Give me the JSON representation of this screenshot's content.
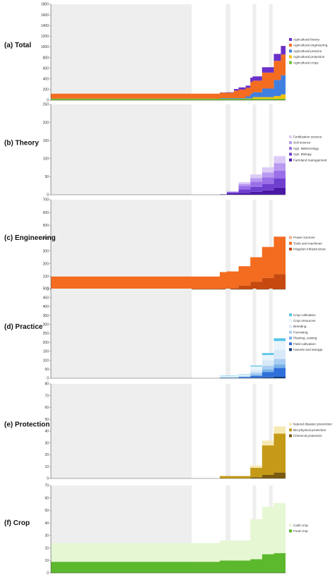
{
  "chart_data": [
    {
      "type": "area",
      "title": "(a) Total",
      "ylim": [
        0,
        1800
      ],
      "yticks": [
        0,
        200,
        400,
        600,
        800,
        1000,
        1200,
        1400,
        1600,
        1800
      ],
      "series": [
        {
          "name": "Agricultural crops",
          "color": "#6fbf2f",
          "x": [
            0,
            0.59,
            0.9,
            1
          ],
          "values": [
            28,
            28,
            28,
            28
          ]
        },
        {
          "name": "Agricultural protection",
          "color": "#f2c200",
          "x": [
            0,
            0.59,
            0.8,
            0.85,
            0.9,
            0.95,
            1
          ],
          "values": [
            0,
            2,
            5,
            30,
            50,
            80,
            110
          ]
        },
        {
          "name": "Agricultural practice",
          "color": "#3f7fe0",
          "x": [
            0,
            0.59,
            0.8,
            0.83,
            0.86,
            0.9,
            0.95,
            0.98,
            1
          ],
          "values": [
            0,
            10,
            40,
            90,
            160,
            300,
            360,
            430,
            450
          ]
        },
        {
          "name": "Agricultural engineering",
          "color": "#f36c1f",
          "x": [
            0,
            0.59,
            0.72,
            0.75,
            0.78,
            0.83,
            0.86,
            0.9,
            0.95,
            0.98,
            1
          ],
          "values": [
            95,
            100,
            100,
            140,
            160,
            220,
            300,
            360,
            390,
            480,
            590
          ]
        },
        {
          "name": "Agricultural theory",
          "color": "#6a2fc9",
          "x": [
            0,
            0.59,
            0.72,
            0.75,
            0.78,
            0.83,
            0.86,
            0.9,
            0.95,
            0.98,
            1
          ],
          "values": [
            0,
            5,
            10,
            30,
            40,
            80,
            100,
            130,
            160,
            180,
            200
          ]
        }
      ],
      "legend": [
        "Agricultural theory",
        "Agricultural engineering",
        "Agricultural practice",
        "Agricultural protection",
        "Agricultural crops"
      ]
    },
    {
      "type": "area",
      "title": "(b) Theory",
      "ylim": [
        0,
        250
      ],
      "yticks": [
        0,
        50,
        100,
        150,
        200,
        250
      ],
      "series": [
        {
          "name": "Farmland management",
          "color": "#4a1aa6",
          "x": [
            0,
            0.58,
            0.72,
            0.75,
            0.8,
            0.85,
            0.9,
            0.95,
            1
          ],
          "values": [
            0,
            0,
            3,
            5,
            8,
            12,
            20,
            30,
            38
          ]
        },
        {
          "name": "Agri. Biology",
          "color": "#6f3fd0",
          "x": [
            0,
            0.58,
            0.72,
            0.75,
            0.8,
            0.85,
            0.9,
            0.95,
            1
          ],
          "values": [
            0,
            0,
            3,
            10,
            14,
            18,
            25,
            30,
            40
          ]
        },
        {
          "name": "Agri. Meteorology",
          "color": "#9a6fe8",
          "x": [
            0,
            0.58,
            0.72,
            0.75,
            0.8,
            0.85,
            0.9,
            0.95,
            1
          ],
          "values": [
            0,
            1,
            2,
            10,
            14,
            18,
            22,
            30,
            35
          ]
        },
        {
          "name": "Soil science",
          "color": "#b99af0",
          "x": [
            0,
            0.58,
            0.72,
            0.75,
            0.8,
            0.85,
            0.9,
            0.95,
            1
          ],
          "values": [
            0,
            1,
            1,
            5,
            10,
            14,
            20,
            30,
            40
          ]
        },
        {
          "name": "Fertilization science",
          "color": "#dccbf7",
          "x": [
            0,
            0.58,
            0.72,
            0.75,
            0.8,
            0.85,
            0.9,
            0.95,
            1
          ],
          "values": [
            0,
            0,
            1,
            5,
            10,
            14,
            20,
            30,
            45
          ]
        }
      ],
      "legend": [
        "Fertilization science",
        "Soil science",
        "Agri. Meteorology",
        "Agri. Biology",
        "Farmland management"
      ]
    },
    {
      "type": "area",
      "title": "(c) Engineering",
      "ylim": [
        0,
        700
      ],
      "yticks": [
        0,
        100,
        200,
        300,
        400,
        500,
        600,
        700
      ],
      "series": [
        {
          "name": "Irrigation infrastructure",
          "color": "#c64a10",
          "x": [
            0,
            0.59,
            0.72,
            0.75,
            0.8,
            0.85,
            0.9,
            0.95,
            1
          ],
          "values": [
            0,
            5,
            10,
            30,
            60,
            90,
            120,
            180,
            230
          ]
        },
        {
          "name": "Tools and machines",
          "color": "#f36c1f",
          "x": [
            0,
            0.59,
            0.72,
            0.75,
            0.8,
            0.85,
            0.9,
            0.95,
            1
          ],
          "values": [
            100,
            130,
            130,
            150,
            190,
            240,
            290,
            320,
            350
          ]
        },
        {
          "name": "Power sources",
          "color": "#f7b08a",
          "x": [
            0,
            0.59,
            0.72,
            0.75,
            0.8,
            0.85,
            0.9,
            0.95,
            1
          ],
          "values": [
            0,
            0,
            0,
            1,
            2,
            3,
            4,
            5,
            6
          ]
        }
      ],
      "legend": [
        "Power sources",
        "Tools and machines",
        "Irrigation infrastructure"
      ]
    },
    {
      "type": "area",
      "title": "(d) Practice",
      "ylim": [
        0,
        500
      ],
      "yticks": [
        0,
        50,
        100,
        150,
        200,
        250,
        300,
        350,
        400,
        450,
        500
      ],
      "series": [
        {
          "name": "Harvest and storage",
          "color": "#123d73",
          "x": [
            0,
            0.59,
            0.72,
            0.8,
            0.85,
            0.9,
            0.95,
            1
          ],
          "values": [
            0,
            0,
            1,
            3,
            5,
            8,
            12,
            15
          ]
        },
        {
          "name": "Field cultivation",
          "color": "#2f6fd9",
          "x": [
            0,
            0.59,
            0.72,
            0.8,
            0.85,
            0.9,
            0.95,
            1
          ],
          "values": [
            0,
            2,
            5,
            10,
            30,
            50,
            70,
            90
          ]
        },
        {
          "name": "Planting, sowing",
          "color": "#78b2ea",
          "x": [
            0,
            0.59,
            0.72,
            0.8,
            0.85,
            0.9,
            0.95,
            1
          ],
          "values": [
            0,
            2,
            3,
            8,
            15,
            20,
            30,
            40
          ]
        },
        {
          "name": "Furrowing",
          "color": "#a9cdf2",
          "x": [
            0,
            0.59,
            0.72,
            0.8,
            0.85,
            0.9,
            0.95,
            1
          ],
          "values": [
            0,
            1,
            2,
            10,
            20,
            30,
            40,
            50
          ]
        },
        {
          "name": "Breeding",
          "color": "#d7e9f8",
          "x": [
            0,
            0.59,
            0.72,
            0.8,
            0.85,
            0.9,
            0.95,
            1
          ],
          "values": [
            0,
            4,
            5,
            15,
            30,
            50,
            70,
            90
          ]
        },
        {
          "name": "Crop resources",
          "color": "#e9f4fc",
          "x": [
            0,
            0.59,
            0.72,
            0.8,
            0.85,
            0.9,
            0.95,
            1
          ],
          "values": [
            0,
            4,
            5,
            20,
            30,
            50,
            60,
            75
          ]
        },
        {
          "name": "Crop cultivation",
          "color": "#55c3ea",
          "x": [
            0,
            0.59,
            0.72,
            0.8,
            0.85,
            0.9,
            0.95,
            1
          ],
          "values": [
            0,
            2,
            2,
            5,
            10,
            15,
            30,
            80
          ]
        }
      ],
      "legend": [
        "Crop cultivation",
        "Crop resources",
        "Breeding",
        "Furrowing",
        "Planting, sowing",
        "Field cultivation",
        "Harvest and storage"
      ]
    },
    {
      "type": "area",
      "title": "(e) Protection",
      "ylim": [
        0,
        80
      ],
      "yticks": [
        0,
        10,
        20,
        30,
        40,
        50,
        60,
        70,
        80
      ],
      "series": [
        {
          "name": "Chemical protection",
          "color": "#7a5a10",
          "x": [
            0,
            0.58,
            0.72,
            0.8,
            0.85,
            0.9,
            0.95,
            1
          ],
          "values": [
            0,
            0,
            0,
            1,
            3,
            5,
            10,
            12
          ]
        },
        {
          "name": "Bio-physical protection",
          "color": "#c49a17",
          "x": [
            0,
            0.58,
            0.72,
            0.8,
            0.85,
            0.9,
            0.95,
            1
          ],
          "values": [
            0,
            2,
            2,
            8,
            25,
            33,
            40,
            50
          ]
        },
        {
          "name": "Natural disaster prevention",
          "color": "#f7e9b3",
          "x": [
            0,
            0.58,
            0.72,
            0.8,
            0.85,
            0.9,
            0.95,
            1
          ],
          "values": [
            0,
            0,
            0,
            2,
            4,
            6,
            8,
            8
          ]
        }
      ],
      "legend": [
        "Natural disaster prevention",
        "Bio-physical protection",
        "Chemical protection"
      ]
    },
    {
      "type": "area",
      "title": "(f) Crop",
      "ylim": [
        0,
        70
      ],
      "yticks": [
        0,
        10,
        20,
        30,
        40,
        50,
        60,
        70
      ],
      "series": [
        {
          "name": "Food crop",
          "color": "#5cb82c",
          "x": [
            0,
            0.59,
            0.72,
            0.79,
            0.85,
            0.9,
            0.95,
            1
          ],
          "values": [
            9,
            10,
            10,
            11,
            15,
            16,
            17,
            18
          ]
        },
        {
          "name": "Cash crop",
          "color": "#e6f7d4",
          "x": [
            0,
            0.59,
            0.72,
            0.79,
            0.85,
            0.9,
            0.95,
            1
          ],
          "values": [
            15,
            16,
            16,
            32,
            38,
            40,
            46,
            46
          ]
        }
      ],
      "legend": [
        "Cash crop",
        "Food crop"
      ]
    }
  ]
}
